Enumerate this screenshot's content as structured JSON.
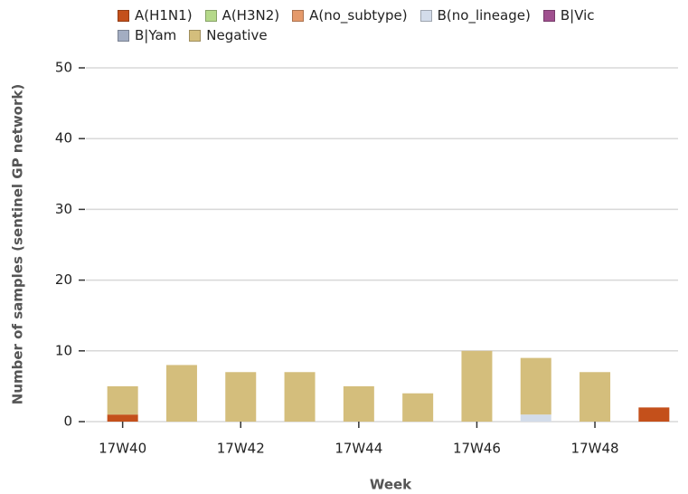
{
  "chart_data": {
    "type": "stacked-bar",
    "x_label": "Week",
    "y_label": "Number of samples (sentinel GP network)",
    "categories": [
      "17W40",
      null,
      "17W42",
      null,
      "17W44",
      null,
      "17W46",
      null,
      "17W48",
      null
    ],
    "series": [
      {
        "name": "A(H1N1)",
        "color": "#c4501b",
        "values": [
          1,
          0,
          0,
          0,
          0,
          0,
          0,
          0,
          0,
          2
        ]
      },
      {
        "name": "A(H3N2)",
        "color": "#b5d98a",
        "values": [
          0,
          0,
          0,
          0,
          0,
          0,
          0,
          0,
          0,
          0
        ]
      },
      {
        "name": "A(no_subtype)",
        "color": "#e59a6b",
        "values": [
          0,
          0,
          0,
          0,
          0,
          0,
          0,
          0,
          0,
          0
        ]
      },
      {
        "name": "B(no_lineage)",
        "color": "#d3dcea",
        "values": [
          0,
          0,
          0,
          0,
          0,
          0,
          0,
          1,
          0,
          0
        ]
      },
      {
        "name": "B|Vic",
        "color": "#a0508f",
        "values": [
          0,
          0,
          0,
          0,
          0,
          0,
          0,
          0,
          0,
          0
        ]
      },
      {
        "name": "B|Yam",
        "color": "#a3adc2",
        "values": [
          0,
          0,
          0,
          0,
          0,
          0,
          0,
          0,
          0,
          0
        ]
      },
      {
        "name": "Negative",
        "color": "#d4be7c",
        "values": [
          4,
          8,
          7,
          7,
          5,
          4,
          10,
          8,
          7,
          0
        ]
      }
    ],
    "ylim": [
      0,
      50
    ],
    "yticks": [
      0,
      10,
      20,
      30,
      40,
      50
    ],
    "grid": true,
    "legend": "top"
  }
}
